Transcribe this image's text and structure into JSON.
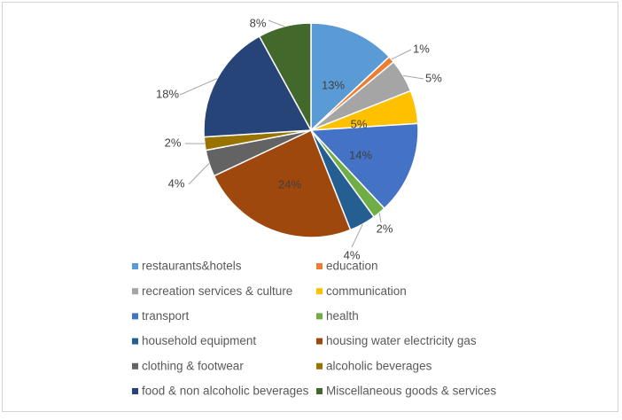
{
  "chart_data": {
    "type": "pie",
    "title": "",
    "slices": [
      {
        "label": "restaurants&hotels",
        "percent": 13,
        "value_label": "13%",
        "color": "#5B9BD5",
        "label_inside": true
      },
      {
        "label": "education",
        "percent": 1,
        "value_label": "1%",
        "color": "#ED7D31",
        "label_inside": false
      },
      {
        "label": "recreation services & culture",
        "percent": 5,
        "value_label": "5%",
        "color": "#A5A5A5",
        "label_inside": false
      },
      {
        "label": "communication",
        "percent": 5,
        "value_label": "5%",
        "color": "#FFC000",
        "label_inside": true
      },
      {
        "label": "transport",
        "percent": 14,
        "value_label": "14%",
        "color": "#4472C4",
        "label_inside": true
      },
      {
        "label": "health",
        "percent": 2,
        "value_label": "2%",
        "color": "#70AD47",
        "label_inside": false
      },
      {
        "label": "household equipment",
        "percent": 4,
        "value_label": "4%",
        "color": "#255E91",
        "label_inside": false
      },
      {
        "label": "housing water electricity gas",
        "percent": 24,
        "value_label": "24%",
        "color": "#9E480E",
        "label_inside": true
      },
      {
        "label": "clothing & footwear",
        "percent": 4,
        "value_label": "4%",
        "color": "#636363",
        "label_inside": false
      },
      {
        "label": "alcoholic beverages",
        "percent": 2,
        "value_label": "2%",
        "color": "#997300",
        "label_inside": false
      },
      {
        "label": "food & non alcoholic beverages",
        "percent": 18,
        "value_label": "18%",
        "color": "#264478",
        "label_inside": false
      },
      {
        "label": "Miscellaneous goods & services",
        "percent": 8,
        "value_label": "8%",
        "color": "#43682B",
        "label_inside": false
      }
    ],
    "legend_position": "bottom"
  }
}
